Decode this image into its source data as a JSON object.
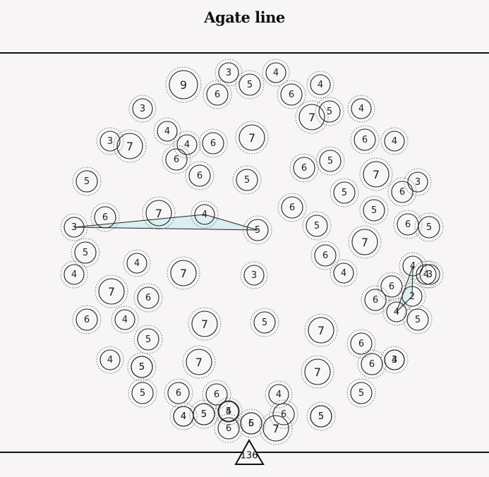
{
  "title": "Agate line",
  "score": "136",
  "colors": {
    "background": "#f7f5f6",
    "stroke": "#222222",
    "selection_fill": "#dbeef0"
  },
  "nodes": [
    {
      "id": "n1",
      "value": "9"
    },
    {
      "id": "n2",
      "value": "3"
    },
    {
      "id": "n3",
      "value": "4"
    },
    {
      "id": "n4",
      "value": "6"
    },
    {
      "id": "n5",
      "value": "5"
    },
    {
      "id": "n6",
      "value": "6"
    },
    {
      "id": "n7",
      "value": "4"
    },
    {
      "id": "n8",
      "value": "7"
    },
    {
      "id": "n9",
      "value": "5"
    },
    {
      "id": "n10",
      "value": "4"
    },
    {
      "id": "n11",
      "value": "3"
    },
    {
      "id": "n12",
      "value": "4"
    },
    {
      "id": "n13",
      "value": "3"
    },
    {
      "id": "n14",
      "value": "7"
    },
    {
      "id": "n15",
      "value": "4"
    },
    {
      "id": "n16",
      "value": "6"
    },
    {
      "id": "n17",
      "value": "6"
    },
    {
      "id": "n18",
      "value": "7"
    },
    {
      "id": "n19",
      "value": "6"
    },
    {
      "id": "n20",
      "value": "4"
    },
    {
      "id": "n21",
      "value": "5"
    },
    {
      "id": "n22",
      "value": "6"
    },
    {
      "id": "n23",
      "value": "5"
    },
    {
      "id": "n24",
      "value": "6"
    },
    {
      "id": "n25",
      "value": "5"
    },
    {
      "id": "n26",
      "value": "7"
    },
    {
      "id": "n27",
      "value": "6"
    },
    {
      "id": "n28",
      "value": "3"
    },
    {
      "id": "n29",
      "value": "5"
    },
    {
      "id": "n30",
      "value": "6"
    },
    {
      "id": "n31",
      "value": "7"
    },
    {
      "id": "n32",
      "value": "4"
    },
    {
      "id": "n33",
      "value": "5"
    },
    {
      "id": "n34",
      "value": "6"
    },
    {
      "id": "n35",
      "value": "5"
    },
    {
      "id": "n36",
      "value": "6"
    },
    {
      "id": "n37",
      "value": "5"
    },
    {
      "id": "n38",
      "value": "3"
    },
    {
      "id": "n39",
      "value": "7"
    },
    {
      "id": "n40",
      "value": "5"
    },
    {
      "id": "n41",
      "value": "6"
    },
    {
      "id": "n42",
      "value": "5"
    },
    {
      "id": "n43",
      "value": "4"
    },
    {
      "id": "n44",
      "value": "7"
    },
    {
      "id": "n45",
      "value": "3"
    },
    {
      "id": "n46",
      "value": "4"
    },
    {
      "id": "n47",
      "value": "4"
    },
    {
      "id": "n48",
      "value": "6"
    },
    {
      "id": "n49",
      "value": "7"
    },
    {
      "id": "n50",
      "value": "6"
    },
    {
      "id": "n51",
      "value": "2"
    },
    {
      "id": "n52",
      "value": "4"
    },
    {
      "id": "n53",
      "value": "4"
    },
    {
      "id": "n54",
      "value": "6"
    },
    {
      "id": "n55",
      "value": "5"
    },
    {
      "id": "n56",
      "value": "7"
    },
    {
      "id": "n57",
      "value": "5"
    },
    {
      "id": "n58",
      "value": "7"
    },
    {
      "id": "n59",
      "value": "6"
    },
    {
      "id": "n60",
      "value": "3"
    },
    {
      "id": "n61",
      "value": "4"
    },
    {
      "id": "n62",
      "value": "5"
    },
    {
      "id": "n63",
      "value": "6"
    },
    {
      "id": "n64",
      "value": "4"
    },
    {
      "id": "n65",
      "value": "7"
    },
    {
      "id": "n66",
      "value": "6"
    },
    {
      "id": "n67",
      "value": "5"
    },
    {
      "id": "n68",
      "value": "4"
    },
    {
      "id": "n69",
      "value": "7"
    },
    {
      "id": "n70",
      "value": "6"
    },
    {
      "id": "n71",
      "value": "6"
    },
    {
      "id": "n72",
      "value": "4"
    },
    {
      "id": "n73",
      "value": "5"
    },
    {
      "id": "n74",
      "value": "5"
    },
    {
      "id": "n75",
      "value": "4"
    },
    {
      "id": "n76",
      "value": "5"
    },
    {
      "id": "n77",
      "value": "4"
    },
    {
      "id": "n78",
      "value": "6"
    },
    {
      "id": "n79",
      "value": "5"
    },
    {
      "id": "n80",
      "value": "6"
    },
    {
      "id": "n81",
      "value": "6"
    },
    {
      "id": "n82",
      "value": "7"
    },
    {
      "id": "n83",
      "value": "4"
    },
    {
      "id": "n84",
      "value": "4"
    },
    {
      "id": "n85",
      "value": "5"
    },
    {
      "id": "n86",
      "value": "5"
    },
    {
      "id": "n87",
      "value": "5"
    },
    {
      "id": "n88",
      "value": "3"
    },
    {
      "id": "n89",
      "value": "5"
    },
    {
      "id": "n90",
      "value": "5"
    }
  ],
  "selections": [
    {
      "id": "sel-a",
      "nodes": [
        "n33",
        "n32",
        "n38"
      ]
    },
    {
      "id": "sel-b",
      "nodes": [
        "n52",
        "n51",
        "n53"
      ]
    }
  ]
}
